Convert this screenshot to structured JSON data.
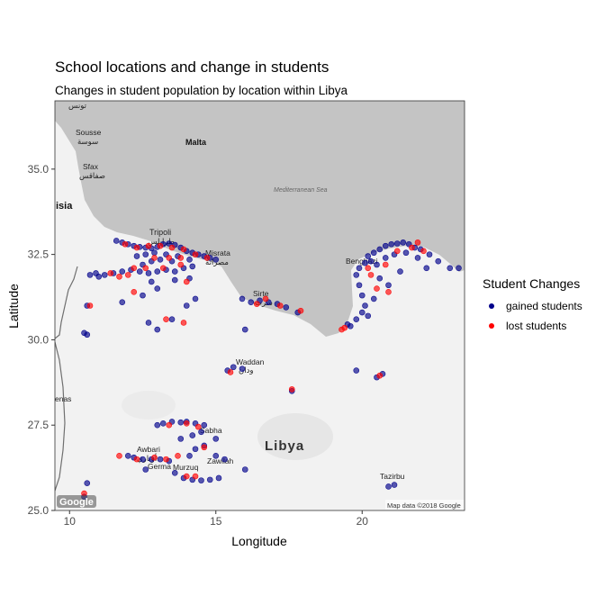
{
  "chart_data": {
    "type": "scatter",
    "title": "School locations and change in students",
    "subtitle": "Changes in student population by location within Libya",
    "xlabel": "Longitude",
    "ylabel": "Latitude",
    "xlim": [
      9.5,
      23.5
    ],
    "ylim": [
      25.0,
      37.0
    ],
    "xticks": [
      10,
      15,
      20
    ],
    "yticks": [
      25.0,
      27.5,
      30.0,
      32.5,
      35.0
    ],
    "xtick_labels": [
      "10",
      "15",
      "20"
    ],
    "ytick_labels": [
      "25.0",
      "27.5",
      "30.0",
      "32.5",
      "35.0"
    ],
    "grid": false,
    "legend": {
      "title": "Student Changes",
      "position": "right",
      "entries": [
        {
          "label": "gained students",
          "color": "#00008b"
        },
        {
          "label": "lost students",
          "color": "#ff0000"
        }
      ]
    },
    "basemap": {
      "sea_color": "#c4c4c4",
      "land_color": "#f2f2f2",
      "labels": {
        "malta": "Malta",
        "sousse": "Sousse",
        "sousse_ar": "سوسة",
        "sfax": "Sfax",
        "sfax_ar": "صفاقس",
        "tunisia": "isia",
        "tunis_ar": "تونس",
        "tripoli": "Tripoli",
        "tripoli_ar": "طرابلس",
        "misrata": "Misrata",
        "misrata_ar": "مصراتة",
        "sirte": "Sirte",
        "sirte_ar": "سرت",
        "benghazi": "Benghazi",
        "waddan": "Waddan",
        "waddan_ar": "ودان",
        "sabha": "Sabha",
        "awbari": "Awbari",
        "awbari_ar": "أوباري",
        "murzuq": "Murzuq",
        "germa": "Germa",
        "zawilah": "Zawilah",
        "tazirbu": "Tazirbu",
        "ghadames": "enas",
        "libya": "Libya",
        "sea": "Mediterranean Sea",
        "credit": "Map data ©2018 Google",
        "google": "Google"
      }
    },
    "series": [
      {
        "name": "gained students",
        "color": "#00008b",
        "points": [
          [
            11.6,
            32.9
          ],
          [
            11.8,
            32.85
          ],
          [
            12.0,
            32.8
          ],
          [
            12.2,
            32.75
          ],
          [
            12.4,
            32.72
          ],
          [
            12.6,
            32.7
          ],
          [
            12.8,
            32.68
          ],
          [
            13.0,
            32.72
          ],
          [
            13.2,
            32.8
          ],
          [
            13.4,
            32.82
          ],
          [
            13.6,
            32.78
          ],
          [
            13.8,
            32.7
          ],
          [
            14.0,
            32.6
          ],
          [
            14.2,
            32.55
          ],
          [
            14.4,
            32.5
          ],
          [
            14.6,
            32.45
          ],
          [
            14.8,
            32.4
          ],
          [
            15.0,
            32.35
          ],
          [
            12.3,
            32.45
          ],
          [
            12.6,
            32.5
          ],
          [
            12.9,
            32.55
          ],
          [
            13.3,
            32.5
          ],
          [
            13.7,
            32.45
          ],
          [
            14.1,
            32.35
          ],
          [
            12.5,
            32.2
          ],
          [
            12.8,
            32.3
          ],
          [
            13.1,
            32.35
          ],
          [
            13.5,
            32.3
          ],
          [
            10.9,
            31.95
          ],
          [
            11.2,
            31.9
          ],
          [
            11.5,
            31.95
          ],
          [
            11.8,
            32.0
          ],
          [
            12.1,
            32.05
          ],
          [
            12.4,
            32.0
          ],
          [
            12.7,
            31.95
          ],
          [
            13.0,
            32.0
          ],
          [
            13.3,
            32.05
          ],
          [
            13.6,
            32.0
          ],
          [
            13.9,
            32.1
          ],
          [
            14.2,
            32.15
          ],
          [
            10.7,
            31.9
          ],
          [
            11.0,
            31.85
          ],
          [
            12.8,
            31.7
          ],
          [
            13.6,
            31.75
          ],
          [
            14.1,
            31.8
          ],
          [
            13.0,
            31.5
          ],
          [
            12.5,
            31.3
          ],
          [
            11.8,
            31.1
          ],
          [
            10.6,
            31.0
          ],
          [
            14.3,
            31.2
          ],
          [
            14.0,
            31.0
          ],
          [
            13.5,
            30.6
          ],
          [
            12.7,
            30.5
          ],
          [
            13.0,
            30.3
          ],
          [
            10.5,
            30.2
          ],
          [
            10.6,
            30.15
          ],
          [
            15.9,
            31.2
          ],
          [
            16.2,
            31.1
          ],
          [
            16.5,
            31.15
          ],
          [
            16.8,
            31.1
          ],
          [
            17.1,
            31.05
          ],
          [
            17.4,
            30.95
          ],
          [
            17.8,
            30.8
          ],
          [
            16.0,
            30.3
          ],
          [
            19.6,
            30.4
          ],
          [
            19.8,
            30.6
          ],
          [
            20.0,
            30.8
          ],
          [
            20.1,
            31.0
          ],
          [
            20.0,
            31.3
          ],
          [
            19.9,
            31.6
          ],
          [
            19.8,
            31.9
          ],
          [
            19.9,
            32.1
          ],
          [
            20.1,
            32.25
          ],
          [
            20.2,
            32.45
          ],
          [
            20.4,
            32.55
          ],
          [
            20.6,
            32.65
          ],
          [
            20.8,
            32.75
          ],
          [
            21.0,
            32.8
          ],
          [
            21.2,
            32.82
          ],
          [
            21.4,
            32.85
          ],
          [
            21.6,
            32.8
          ],
          [
            21.8,
            32.7
          ],
          [
            22.0,
            32.65
          ],
          [
            22.3,
            32.5
          ],
          [
            22.6,
            32.3
          ],
          [
            23.0,
            32.1
          ],
          [
            23.3,
            32.1
          ],
          [
            20.3,
            32.3
          ],
          [
            20.5,
            32.2
          ],
          [
            20.8,
            32.4
          ],
          [
            21.1,
            32.5
          ],
          [
            21.5,
            32.55
          ],
          [
            21.9,
            32.4
          ],
          [
            22.2,
            32.1
          ],
          [
            20.6,
            31.8
          ],
          [
            20.9,
            31.6
          ],
          [
            21.3,
            32.0
          ],
          [
            20.4,
            31.2
          ],
          [
            20.2,
            30.7
          ],
          [
            19.5,
            30.45
          ],
          [
            20.5,
            28.9
          ],
          [
            20.7,
            29.0
          ],
          [
            19.8,
            29.1
          ],
          [
            15.4,
            29.1
          ],
          [
            15.6,
            29.2
          ],
          [
            15.9,
            29.15
          ],
          [
            17.6,
            28.5
          ],
          [
            13.0,
            27.5
          ],
          [
            13.2,
            27.55
          ],
          [
            13.5,
            27.6
          ],
          [
            13.8,
            27.58
          ],
          [
            14.0,
            27.6
          ],
          [
            14.3,
            27.55
          ],
          [
            14.6,
            27.5
          ],
          [
            14.2,
            27.2
          ],
          [
            13.8,
            27.1
          ],
          [
            14.5,
            27.3
          ],
          [
            15.0,
            27.1
          ],
          [
            14.3,
            26.8
          ],
          [
            14.6,
            26.9
          ],
          [
            14.1,
            26.6
          ],
          [
            15.0,
            26.6
          ],
          [
            15.3,
            26.5
          ],
          [
            16.0,
            26.2
          ],
          [
            12.0,
            26.6
          ],
          [
            12.2,
            26.55
          ],
          [
            12.5,
            26.5
          ],
          [
            12.8,
            26.5
          ],
          [
            13.1,
            26.5
          ],
          [
            13.4,
            26.45
          ],
          [
            12.6,
            26.2
          ],
          [
            13.6,
            26.1
          ],
          [
            13.9,
            25.95
          ],
          [
            14.2,
            25.9
          ],
          [
            14.5,
            25.88
          ],
          [
            14.8,
            25.9
          ],
          [
            15.1,
            25.95
          ],
          [
            10.6,
            25.8
          ],
          [
            10.5,
            25.4
          ],
          [
            20.9,
            25.7
          ],
          [
            21.1,
            25.75
          ]
        ]
      },
      {
        "name": "lost students",
        "color": "#ff0000",
        "points": [
          [
            11.9,
            32.8
          ],
          [
            12.3,
            32.7
          ],
          [
            12.7,
            32.75
          ],
          [
            13.1,
            32.75
          ],
          [
            13.5,
            32.7
          ],
          [
            13.9,
            32.65
          ],
          [
            14.3,
            32.5
          ],
          [
            14.7,
            32.4
          ],
          [
            12.9,
            32.4
          ],
          [
            13.4,
            32.4
          ],
          [
            13.8,
            32.4
          ],
          [
            12.2,
            32.1
          ],
          [
            12.6,
            32.1
          ],
          [
            13.2,
            32.1
          ],
          [
            11.4,
            31.95
          ],
          [
            11.7,
            31.85
          ],
          [
            13.8,
            32.2
          ],
          [
            12.0,
            31.9
          ],
          [
            14.0,
            31.7
          ],
          [
            13.9,
            30.5
          ],
          [
            10.7,
            31.0
          ],
          [
            13.3,
            30.6
          ],
          [
            12.2,
            31.4
          ],
          [
            16.4,
            31.05
          ],
          [
            16.7,
            31.2
          ],
          [
            17.2,
            31.0
          ],
          [
            17.9,
            30.85
          ],
          [
            19.3,
            30.3
          ],
          [
            19.4,
            30.35
          ],
          [
            20.3,
            31.9
          ],
          [
            20.8,
            32.2
          ],
          [
            21.2,
            32.6
          ],
          [
            21.7,
            32.7
          ],
          [
            22.1,
            32.6
          ],
          [
            20.5,
            31.5
          ],
          [
            20.9,
            31.4
          ],
          [
            21.9,
            32.85
          ],
          [
            20.2,
            32.1
          ],
          [
            15.5,
            29.05
          ],
          [
            17.6,
            28.55
          ],
          [
            20.6,
            28.95
          ],
          [
            13.4,
            27.5
          ],
          [
            14.0,
            27.55
          ],
          [
            14.4,
            27.45
          ],
          [
            12.3,
            26.5
          ],
          [
            12.9,
            26.55
          ],
          [
            13.3,
            26.5
          ],
          [
            14.0,
            26.0
          ],
          [
            14.3,
            26.0
          ],
          [
            14.6,
            26.85
          ],
          [
            13.7,
            26.6
          ],
          [
            11.7,
            26.6
          ],
          [
            10.5,
            25.5
          ]
        ]
      }
    ]
  }
}
